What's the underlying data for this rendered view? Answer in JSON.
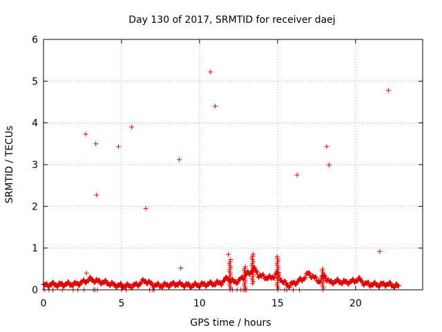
{
  "chart_data": {
    "type": "scatter",
    "title": "Day 130 of 2017, SRMTID for receiver daej",
    "xlabel": "GPS time / hours",
    "ylabel": "SRMTID / TECUs",
    "xlim": [
      0,
      24.3
    ],
    "ylim": [
      0,
      6
    ],
    "xticks": [
      0,
      5,
      10,
      15,
      20
    ],
    "yticks": [
      0,
      1,
      2,
      3,
      4,
      5,
      6
    ],
    "grid": true,
    "marker": "+",
    "color": "#e00000",
    "series": [
      {
        "name": "SRMTID",
        "outliers": [
          [
            2.7,
            3.73
          ],
          [
            3.35,
            3.5
          ],
          [
            3.4,
            2.27
          ],
          [
            4.8,
            3.43
          ],
          [
            5.65,
            3.9
          ],
          [
            6.55,
            1.95
          ],
          [
            8.7,
            3.12
          ],
          [
            8.8,
            0.52
          ],
          [
            10.7,
            5.22
          ],
          [
            11.0,
            4.4
          ],
          [
            11.85,
            0.85
          ],
          [
            16.25,
            2.75
          ],
          [
            18.15,
            3.43
          ],
          [
            18.3,
            2.99
          ],
          [
            21.55,
            0.92
          ],
          [
            22.1,
            4.78
          ],
          [
            2.75,
            0.4
          ]
        ],
        "baseline": [
          [
            0.0,
            0.1
          ],
          [
            0.5,
            0.13
          ],
          [
            1.0,
            0.12
          ],
          [
            1.5,
            0.14
          ],
          [
            2.0,
            0.13
          ],
          [
            2.5,
            0.18
          ],
          [
            3.0,
            0.25
          ],
          [
            3.5,
            0.2
          ],
          [
            4.0,
            0.17
          ],
          [
            4.5,
            0.12
          ],
          [
            5.0,
            0.1
          ],
          [
            5.5,
            0.09
          ],
          [
            6.0,
            0.12
          ],
          [
            6.5,
            0.22
          ],
          [
            7.0,
            0.12
          ],
          [
            7.5,
            0.1
          ],
          [
            8.0,
            0.12
          ],
          [
            8.5,
            0.14
          ],
          [
            9.0,
            0.12
          ],
          [
            9.5,
            0.1
          ],
          [
            10.0,
            0.12
          ],
          [
            10.5,
            0.14
          ],
          [
            11.0,
            0.15
          ],
          [
            11.5,
            0.18
          ],
          [
            11.8,
            0.3
          ],
          [
            12.0,
            0.2
          ],
          [
            12.5,
            0.2
          ],
          [
            12.9,
            0.35
          ],
          [
            13.2,
            0.4
          ],
          [
            13.5,
            0.5
          ],
          [
            13.8,
            0.35
          ],
          [
            14.2,
            0.3
          ],
          [
            14.6,
            0.28
          ],
          [
            15.0,
            0.4
          ],
          [
            15.3,
            0.2
          ],
          [
            15.7,
            0.1
          ],
          [
            16.6,
            0.25
          ],
          [
            17.0,
            0.4
          ],
          [
            17.3,
            0.3
          ],
          [
            17.7,
            0.2
          ],
          [
            18.0,
            0.35
          ],
          [
            18.3,
            0.18
          ],
          [
            18.8,
            0.2
          ],
          [
            19.3,
            0.18
          ],
          [
            19.8,
            0.2
          ],
          [
            20.2,
            0.25
          ],
          [
            20.6,
            0.15
          ],
          [
            21.0,
            0.13
          ],
          [
            21.5,
            0.12
          ],
          [
            22.0,
            0.14
          ],
          [
            22.5,
            0.1
          ],
          [
            22.8,
            0.08
          ]
        ],
        "baseline_zeros_x": [
          0.05,
          0.35,
          0.6,
          1.2,
          1.9,
          2.2,
          2.6,
          3.2,
          3.3,
          3.45,
          5.0,
          5.3,
          6.8,
          7.0,
          7.1,
          12.1,
          12.4,
          12.65,
          12.8,
          13.0,
          15.45,
          15.6,
          16.0,
          16.4
        ],
        "vertical_clusters": [
          [
            11.95,
            0.0,
            0.72
          ],
          [
            13.4,
            0.15,
            0.85
          ],
          [
            15.0,
            0.0,
            0.8
          ],
          [
            12.9,
            0.0,
            0.55
          ],
          [
            17.9,
            0.0,
            0.5
          ]
        ]
      }
    ]
  }
}
